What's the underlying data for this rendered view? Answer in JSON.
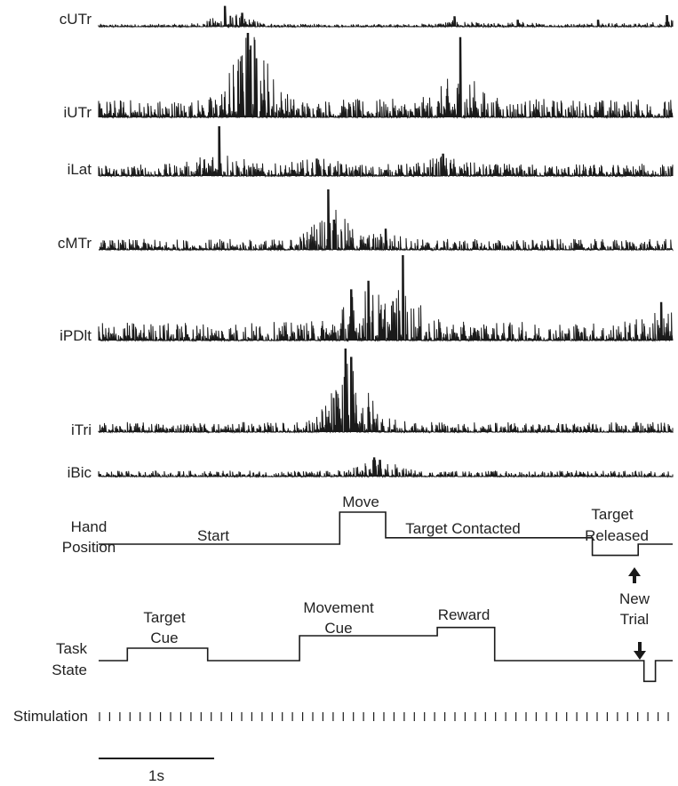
{
  "chart_data": {
    "type": "line",
    "title": "",
    "emg_channels": [
      {
        "name": "cUTr",
        "bursts": [
          {
            "t": 0.22,
            "amp": 0.9
          },
          {
            "t": 0.25,
            "amp": 0.6
          },
          {
            "t": 0.62,
            "amp": 0.45
          },
          {
            "t": 0.73,
            "amp": 0.3
          },
          {
            "t": 0.87,
            "amp": 0.3
          },
          {
            "t": 0.99,
            "amp": 0.5
          }
        ]
      },
      {
        "name": "iUTr",
        "bursts": [
          {
            "t": 0.26,
            "amp": 1.0
          },
          {
            "t": 0.265,
            "amp": 0.85
          },
          {
            "t": 0.275,
            "amp": 0.7
          },
          {
            "t": 0.63,
            "amp": 0.95
          }
        ]
      },
      {
        "name": "iLat",
        "bursts": [
          {
            "t": 0.21,
            "amp": 1.0
          },
          {
            "t": 0.38,
            "amp": 0.35
          },
          {
            "t": 0.6,
            "amp": 0.45
          }
        ]
      },
      {
        "name": "cMTr",
        "bursts": [
          {
            "t": 0.4,
            "amp": 1.0
          },
          {
            "t": 0.41,
            "amp": 0.5
          },
          {
            "t": 0.5,
            "amp": 0.35
          }
        ]
      },
      {
        "name": "iPDlt",
        "bursts": [
          {
            "t": 0.53,
            "amp": 1.0
          },
          {
            "t": 0.47,
            "amp": 0.7
          },
          {
            "t": 0.44,
            "amp": 0.6
          },
          {
            "t": 0.98,
            "amp": 0.45
          }
        ]
      },
      {
        "name": "iTri",
        "bursts": [
          {
            "t": 0.43,
            "amp": 1.0
          },
          {
            "t": 0.44,
            "amp": 0.9
          },
          {
            "t": 0.47,
            "amp": 0.3
          }
        ]
      },
      {
        "name": "iBic",
        "bursts": [
          {
            "t": 0.48,
            "amp": 0.8
          },
          {
            "t": 0.49,
            "amp": 0.7
          }
        ]
      }
    ],
    "hand_position": {
      "label_lines": [
        "Hand",
        "Position"
      ],
      "levels": [
        {
          "t0": 0.0,
          "t1": 0.42,
          "level": 0
        },
        {
          "t0": 0.42,
          "t1": 0.5,
          "level": 1
        },
        {
          "t0": 0.5,
          "t1": 0.86,
          "level": 0.2
        },
        {
          "t0": 0.86,
          "t1": 0.94,
          "level": -0.35
        },
        {
          "t0": 0.94,
          "t1": 1.0,
          "level": 0
        }
      ],
      "annotations": [
        {
          "text": "Start"
        },
        {
          "text": "Move"
        },
        {
          "text": "Target Contacted"
        },
        {
          "text": "Target",
          "text2": "Released"
        }
      ]
    },
    "new_trial_label": [
      "New",
      "Trial"
    ],
    "task_state": {
      "label_lines": [
        "Task",
        "State"
      ],
      "levels": [
        {
          "t0": 0.0,
          "t1": 0.05,
          "level": 0
        },
        {
          "t0": 0.05,
          "t1": 0.19,
          "level": 0.3
        },
        {
          "t0": 0.19,
          "t1": 0.35,
          "level": 0
        },
        {
          "t0": 0.35,
          "t1": 0.59,
          "level": 0.6
        },
        {
          "t0": 0.59,
          "t1": 0.69,
          "level": 0.8
        },
        {
          "t0": 0.69,
          "t1": 0.95,
          "level": 0
        },
        {
          "t0": 0.95,
          "t1": 0.97,
          "level": -0.5
        },
        {
          "t0": 0.97,
          "t1": 1.0,
          "level": 0
        }
      ],
      "annotations": [
        {
          "text": "Target",
          "text2": "Cue"
        },
        {
          "text": "Movement",
          "text2": "Cue"
        },
        {
          "text": "Reward"
        }
      ]
    },
    "stimulation": {
      "label": "Stimulation",
      "pulse_count": 57
    },
    "scale_bar": {
      "label": "1s",
      "duration_s": 1
    }
  }
}
